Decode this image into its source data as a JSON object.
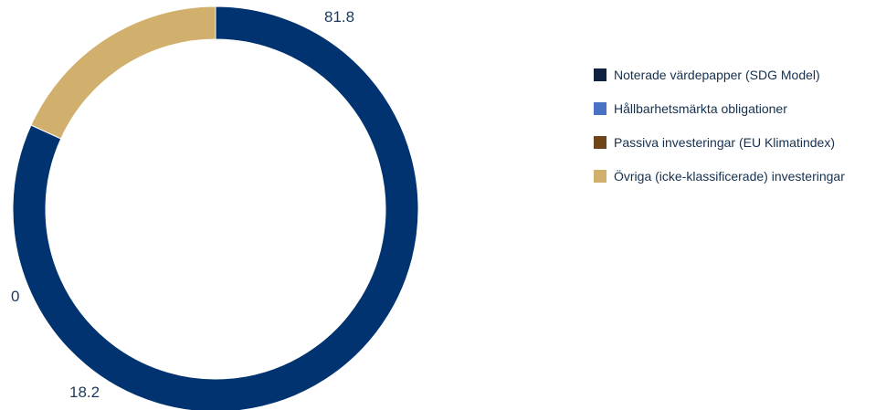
{
  "chart_data": {
    "type": "pie",
    "variant": "donut",
    "legend_position": "right",
    "series": [
      {
        "name": "Noterade värdepapper (SDG Model)",
        "value": 81.8,
        "color": "#00336f",
        "label": "81.8"
      },
      {
        "name": "Hållbarhetsmärkta obligationer",
        "value": 0,
        "color": "#4a72c4",
        "label": ""
      },
      {
        "name": "Passiva investeringar (EU Klimatindex)",
        "value": 0,
        "color": "#6e4518",
        "label": "0"
      },
      {
        "name": "Övriga (icke-klassificerade) investeringar",
        "value": 18.2,
        "color": "#d1af6c",
        "label": "18.2"
      }
    ],
    "legend_swatch_colors": [
      "#0f2340",
      "#4a72c4",
      "#6e4518",
      "#d1af6c"
    ]
  }
}
